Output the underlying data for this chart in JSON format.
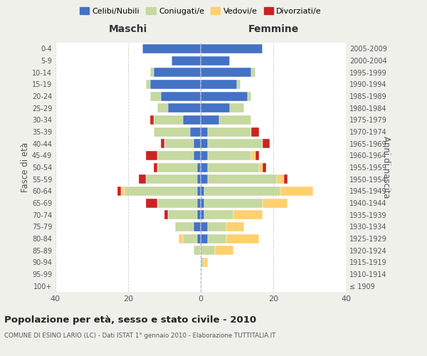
{
  "age_groups": [
    "100+",
    "95-99",
    "90-94",
    "85-89",
    "80-84",
    "75-79",
    "70-74",
    "65-69",
    "60-64",
    "55-59",
    "50-54",
    "45-49",
    "40-44",
    "35-39",
    "30-34",
    "25-29",
    "20-24",
    "15-19",
    "10-14",
    "5-9",
    "0-4"
  ],
  "birth_years": [
    "≤ 1909",
    "1910-1914",
    "1915-1919",
    "1920-1924",
    "1925-1929",
    "1930-1934",
    "1935-1939",
    "1940-1944",
    "1945-1949",
    "1950-1954",
    "1955-1959",
    "1960-1964",
    "1965-1969",
    "1970-1974",
    "1975-1979",
    "1980-1984",
    "1985-1989",
    "1990-1994",
    "1995-1999",
    "2000-2004",
    "2005-2009"
  ],
  "colors": {
    "celibi": "#4472c4",
    "coniugati": "#c5d9a0",
    "vedovi": "#ffd06e",
    "divorziati": "#cc2222"
  },
  "maschi": {
    "celibi": [
      0,
      0,
      0,
      0,
      1,
      2,
      1,
      1,
      1,
      1,
      1,
      2,
      2,
      3,
      5,
      9,
      11,
      14,
      13,
      8,
      16
    ],
    "coniugati": [
      0,
      0,
      0,
      2,
      4,
      5,
      8,
      11,
      20,
      14,
      11,
      10,
      8,
      10,
      8,
      3,
      3,
      1,
      1,
      0,
      0
    ],
    "vedovi": [
      0,
      0,
      0,
      0,
      1,
      0,
      0,
      0,
      1,
      0,
      0,
      0,
      0,
      0,
      0,
      0,
      0,
      0,
      0,
      0,
      0
    ],
    "divorziati": [
      0,
      0,
      0,
      0,
      0,
      0,
      1,
      3,
      1,
      2,
      1,
      3,
      1,
      0,
      1,
      0,
      0,
      0,
      0,
      0,
      0
    ]
  },
  "femmine": {
    "celibi": [
      0,
      0,
      0,
      0,
      2,
      2,
      1,
      1,
      1,
      2,
      2,
      2,
      2,
      2,
      5,
      8,
      13,
      10,
      14,
      8,
      17
    ],
    "coniugati": [
      0,
      0,
      1,
      4,
      5,
      5,
      8,
      16,
      21,
      19,
      14,
      12,
      15,
      12,
      9,
      4,
      1,
      1,
      1,
      0,
      0
    ],
    "vedovi": [
      0,
      0,
      1,
      5,
      9,
      5,
      8,
      7,
      9,
      2,
      1,
      1,
      0,
      0,
      0,
      0,
      0,
      0,
      0,
      0,
      0
    ],
    "divorziati": [
      0,
      0,
      0,
      0,
      0,
      0,
      0,
      0,
      0,
      1,
      1,
      1,
      2,
      2,
      0,
      0,
      0,
      0,
      0,
      0,
      0
    ]
  },
  "xlim": 40,
  "title": "Popolazione per età, sesso e stato civile - 2010",
  "subtitle": "COMUNE DI ESINO LARIO (LC) - Dati ISTAT 1° gennaio 2010 - Elaborazione TUTTITALIA.IT",
  "xlabel_left": "Maschi",
  "xlabel_right": "Femmine",
  "ylabel_left": "Fasce di età",
  "ylabel_right": "Anni di nascita",
  "legend_labels": [
    "Celibi/Nubili",
    "Coniugati/e",
    "Vedovi/e",
    "Divorziati/e"
  ],
  "bg_color": "#f0f0eb",
  "plot_bg": "#ffffff"
}
